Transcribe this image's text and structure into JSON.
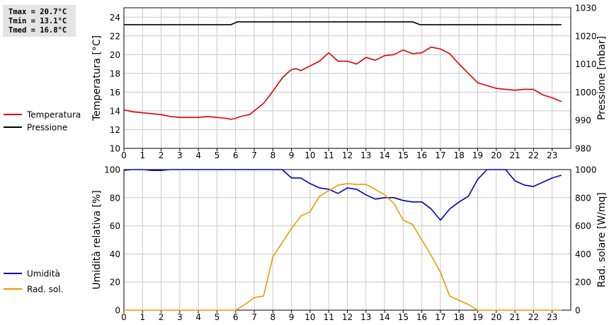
{
  "stats": {
    "tmax": "Tmax = 20.7°C",
    "tmin": "Tmin = 13.1°C",
    "tmed": "Tmed = 16.8°C"
  },
  "chart_data": [
    {
      "type": "line",
      "x_ticks": [
        "0",
        "1",
        "2",
        "3",
        "4",
        "5",
        "6",
        "7",
        "8",
        "9",
        "10",
        "11",
        "12",
        "13",
        "14",
        "15",
        "16",
        "17",
        "18",
        "19",
        "20",
        "21",
        "22",
        "23"
      ],
      "xlim": [
        0,
        24
      ],
      "ylabel_left": "Temperatura [°C]",
      "ylabel_right": "Pressione [mbar]",
      "ylim_left": [
        10,
        25
      ],
      "ylim_right": [
        980,
        1030
      ],
      "yticks_left": [
        10,
        12,
        14,
        16,
        18,
        20,
        22,
        24
      ],
      "yticks_right": [
        980,
        990,
        1000,
        1010,
        1020,
        1030
      ],
      "grid": true,
      "legend_position": "left",
      "series": [
        {
          "name": "Temperatura",
          "axis": "left",
          "color": "#dd0000",
          "x": [
            0,
            0.5,
            1,
            1.5,
            2,
            2.5,
            3,
            3.5,
            4,
            4.5,
            5,
            5.5,
            5.75,
            6,
            6.25,
            6.5,
            6.75,
            7,
            7.5,
            8,
            8.5,
            8.75,
            9,
            9.25,
            9.5,
            10,
            10.5,
            11,
            11.5,
            12,
            12.5,
            13,
            13.5,
            14,
            14.5,
            15,
            15.5,
            16,
            16.5,
            17,
            17.5,
            18,
            18.5,
            19,
            19.5,
            20,
            20.5,
            21,
            21.5,
            22,
            22.5,
            23,
            23.5
          ],
          "y": [
            14.1,
            13.9,
            13.8,
            13.7,
            13.6,
            13.4,
            13.3,
            13.3,
            13.3,
            13.4,
            13.3,
            13.2,
            13.1,
            13.2,
            13.4,
            13.5,
            13.6,
            14.0,
            14.8,
            16.1,
            17.5,
            18.0,
            18.4,
            18.5,
            18.3,
            18.8,
            19.3,
            20.2,
            19.3,
            19.3,
            19.0,
            19.7,
            19.4,
            19.9,
            20.0,
            20.5,
            20.1,
            20.2,
            20.8,
            20.6,
            20.1,
            19.0,
            18.0,
            17.0,
            16.7,
            16.4,
            16.3,
            16.2,
            16.3,
            16.3,
            15.7,
            15.4,
            15.0
          ]
        },
        {
          "name": "Pressione",
          "axis": "right",
          "color": "#000000",
          "x": [
            0,
            5.75,
            6.1,
            15.5,
            15.9,
            23.5
          ],
          "y": [
            1024,
            1024,
            1025,
            1025,
            1024,
            1024
          ]
        }
      ]
    },
    {
      "type": "line",
      "x_ticks": [
        "0",
        "1",
        "2",
        "3",
        "4",
        "5",
        "6",
        "7",
        "8",
        "9",
        "10",
        "11",
        "12",
        "13",
        "14",
        "15",
        "16",
        "17",
        "18",
        "19",
        "20",
        "21",
        "22",
        "23"
      ],
      "xlim": [
        0,
        24
      ],
      "ylabel_left": "Umidità relativa [%]",
      "ylabel_right": "Rad. solare [W/mq]",
      "ylim_left": [
        0,
        100
      ],
      "ylim_right": [
        0,
        1000
      ],
      "yticks_left": [
        0,
        20,
        40,
        60,
        80,
        100
      ],
      "yticks_right": [
        0,
        200,
        400,
        600,
        800,
        1000
      ],
      "grid": true,
      "legend_position": "left",
      "series": [
        {
          "name": "Umidità",
          "axis": "left",
          "color": "#0000bb",
          "x": [
            0,
            0.5,
            1,
            1.5,
            2,
            2.5,
            3,
            4,
            5,
            6,
            7,
            8,
            8.5,
            9,
            9.5,
            10,
            10.5,
            11,
            11.5,
            12,
            12.5,
            13,
            13.5,
            14,
            14.5,
            15,
            15.5,
            16,
            16.5,
            17,
            17.5,
            18,
            18.5,
            19,
            19.5,
            20,
            20.5,
            21,
            21.5,
            22,
            22.5,
            23,
            23.5
          ],
          "y": [
            99.5,
            100,
            100,
            99.4,
            99.4,
            100,
            100,
            100,
            100,
            100,
            100,
            100,
            100,
            94,
            94,
            90,
            87,
            86,
            83,
            87,
            86,
            82,
            79,
            80,
            80,
            78,
            77,
            77,
            72,
            64,
            72,
            77,
            81,
            93,
            100,
            100,
            100,
            92,
            89,
            88,
            91,
            94,
            96
          ]
        },
        {
          "name": "Rad. sol.",
          "axis": "right",
          "color": "#ee9900",
          "x": [
            0,
            1,
            2,
            3,
            4,
            5,
            6,
            6.5,
            7,
            7.5,
            8,
            8.5,
            9,
            9.5,
            10,
            10.5,
            11,
            11.5,
            12,
            12.5,
            13,
            13.5,
            14,
            14.5,
            15,
            15.5,
            16,
            16.5,
            17,
            17.5,
            18,
            18.5,
            19,
            20,
            21,
            22,
            23,
            23.5
          ],
          "y": [
            0,
            0,
            0,
            0,
            0,
            0,
            0,
            40,
            90,
            100,
            380,
            480,
            580,
            670,
            700,
            810,
            850,
            890,
            900,
            895,
            895,
            860,
            820,
            760,
            640,
            610,
            500,
            390,
            270,
            100,
            70,
            40,
            0,
            0,
            0,
            0,
            0,
            0
          ]
        }
      ]
    }
  ]
}
